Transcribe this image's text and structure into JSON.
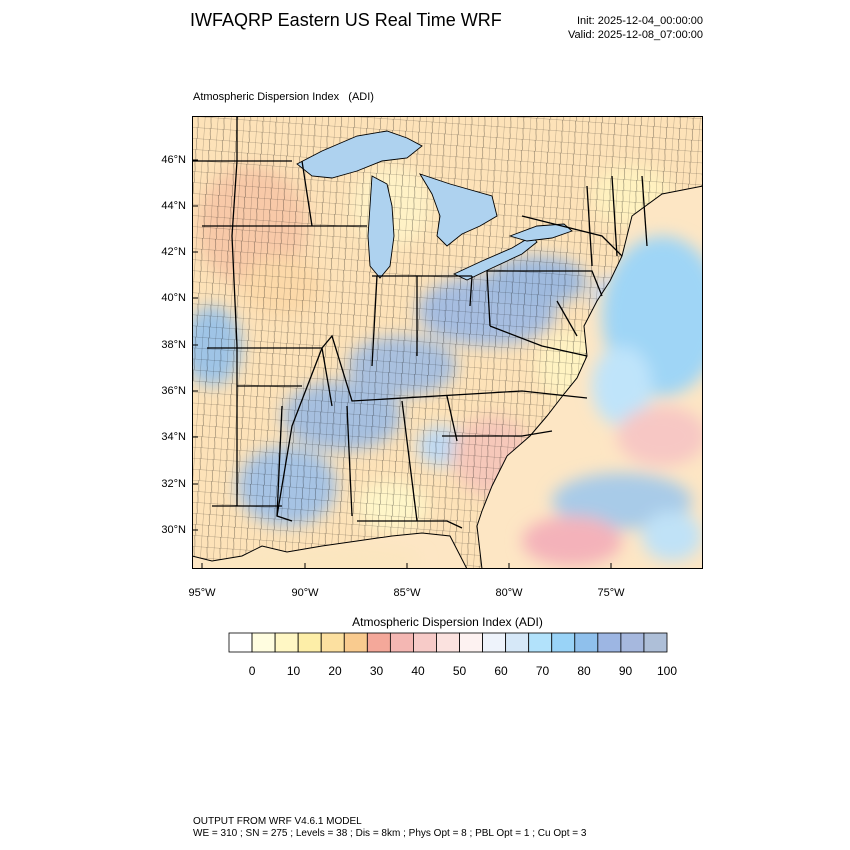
{
  "header": {
    "title": "IWFAQRP Eastern US Real Time WRF",
    "init": "Init: 2025-12-04_00:00:00",
    "valid": "Valid: 2025-12-08_07:00:00"
  },
  "map": {
    "field_title": "Atmospheric Dispersion Index   (ADI)",
    "lat_ticks": [
      "46°N",
      "44°N",
      "42°N",
      "40°N",
      "38°N",
      "36°N",
      "34°N",
      "32°N",
      "30°N"
    ],
    "lon_ticks": [
      "95°W",
      "90°W",
      "85°W",
      "80°W",
      "75°W"
    ]
  },
  "colorbar": {
    "title": "Atmospheric Dispersion Index  (ADI)",
    "labels": [
      "0",
      "10",
      "20",
      "30",
      "40",
      "50",
      "60",
      "70",
      "80",
      "90",
      "100"
    ],
    "colors": [
      "#ffffff",
      "#fffde0",
      "#fff7c4",
      "#fdeea8",
      "#fce0a0",
      "#f9cb8f",
      "#f4a89a",
      "#f4b7b3",
      "#f7cbc8",
      "#fbe2df",
      "#fdf2f1",
      "#eef3fb",
      "#d6e8f8",
      "#b2e2fb",
      "#99d3f7",
      "#8fc0ec",
      "#9db6e3",
      "#a6b8de",
      "#aebfd8"
    ]
  },
  "footer": {
    "line1": "OUTPUT FROM WRF V4.6.1 MODEL",
    "line2": "WE = 310 ; SN = 275 ; Levels = 38 ; Dis = 8km ; Phys Opt = 8 ; PBL Opt = 1 ; Cu Opt = 3"
  }
}
